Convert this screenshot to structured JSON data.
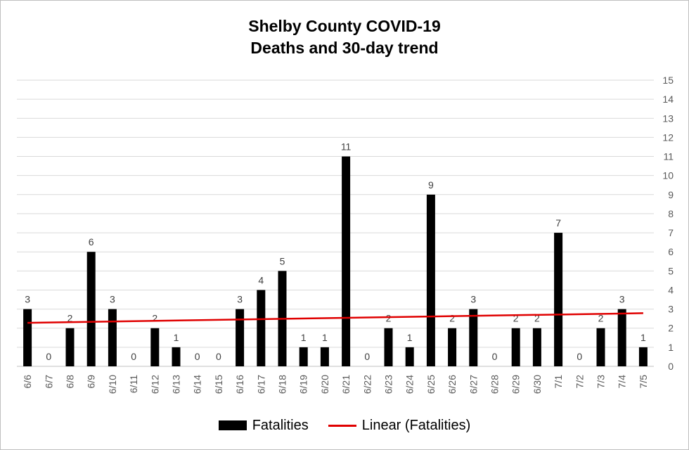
{
  "chart_data": {
    "type": "bar",
    "title": [
      "Shelby County COVID-19",
      "Deaths and 30-day trend"
    ],
    "categories": [
      "6/6",
      "6/7",
      "6/8",
      "6/9",
      "6/10",
      "6/11",
      "6/12",
      "6/13",
      "6/14",
      "6/15",
      "6/16",
      "6/17",
      "6/18",
      "6/19",
      "6/20",
      "6/21",
      "6/22",
      "6/23",
      "6/24",
      "6/25",
      "6/26",
      "6/27",
      "6/28",
      "6/29",
      "6/30",
      "7/1",
      "7/2",
      "7/3",
      "7/4",
      "7/5"
    ],
    "series": [
      {
        "name": "Fatalities",
        "values": [
          3,
          0,
          2,
          6,
          3,
          0,
          2,
          1,
          0,
          0,
          3,
          4,
          5,
          1,
          1,
          11,
          0,
          2,
          1,
          9,
          2,
          3,
          0,
          2,
          2,
          7,
          0,
          2,
          3,
          1
        ],
        "color": "#000000"
      }
    ],
    "trendline": {
      "name": "Linear (Fatalities)",
      "type": "linear",
      "color": "#e00000"
    },
    "ylim": [
      0,
      15
    ],
    "yticks": [
      0,
      1,
      2,
      3,
      4,
      5,
      6,
      7,
      8,
      9,
      10,
      11,
      12,
      13,
      14,
      15
    ],
    "y_axis_side": "right",
    "grid": true,
    "data_labels": true,
    "legend_position": "bottom"
  }
}
